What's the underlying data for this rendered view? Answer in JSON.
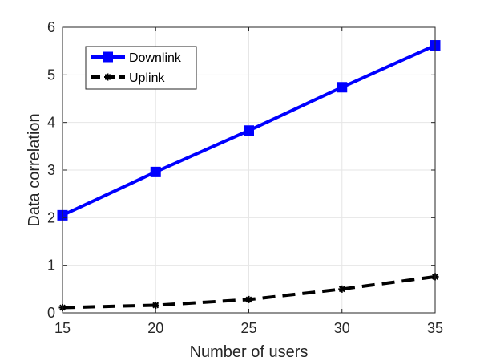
{
  "chart_data": {
    "type": "line",
    "title": "",
    "xlabel": "Number of users",
    "ylabel": "Data correlation",
    "x": [
      15,
      20,
      25,
      30,
      35
    ],
    "xlim": [
      15,
      35
    ],
    "ylim": [
      0,
      6
    ],
    "xticks": [
      "15",
      "20",
      "25",
      "30",
      "35"
    ],
    "yticks": [
      "0",
      "1",
      "2",
      "3",
      "4",
      "5",
      "6"
    ],
    "grid": true,
    "legend_position": "top-left",
    "series": [
      {
        "name": "Downlink",
        "values": [
          2.05,
          2.96,
          3.83,
          4.74,
          5.62
        ],
        "color": "#0000ff",
        "line_style": "solid",
        "marker": "square"
      },
      {
        "name": "Uplink",
        "values": [
          0.11,
          0.16,
          0.28,
          0.5,
          0.76
        ],
        "color": "#000000",
        "line_style": "dashed",
        "marker": "star"
      }
    ]
  }
}
